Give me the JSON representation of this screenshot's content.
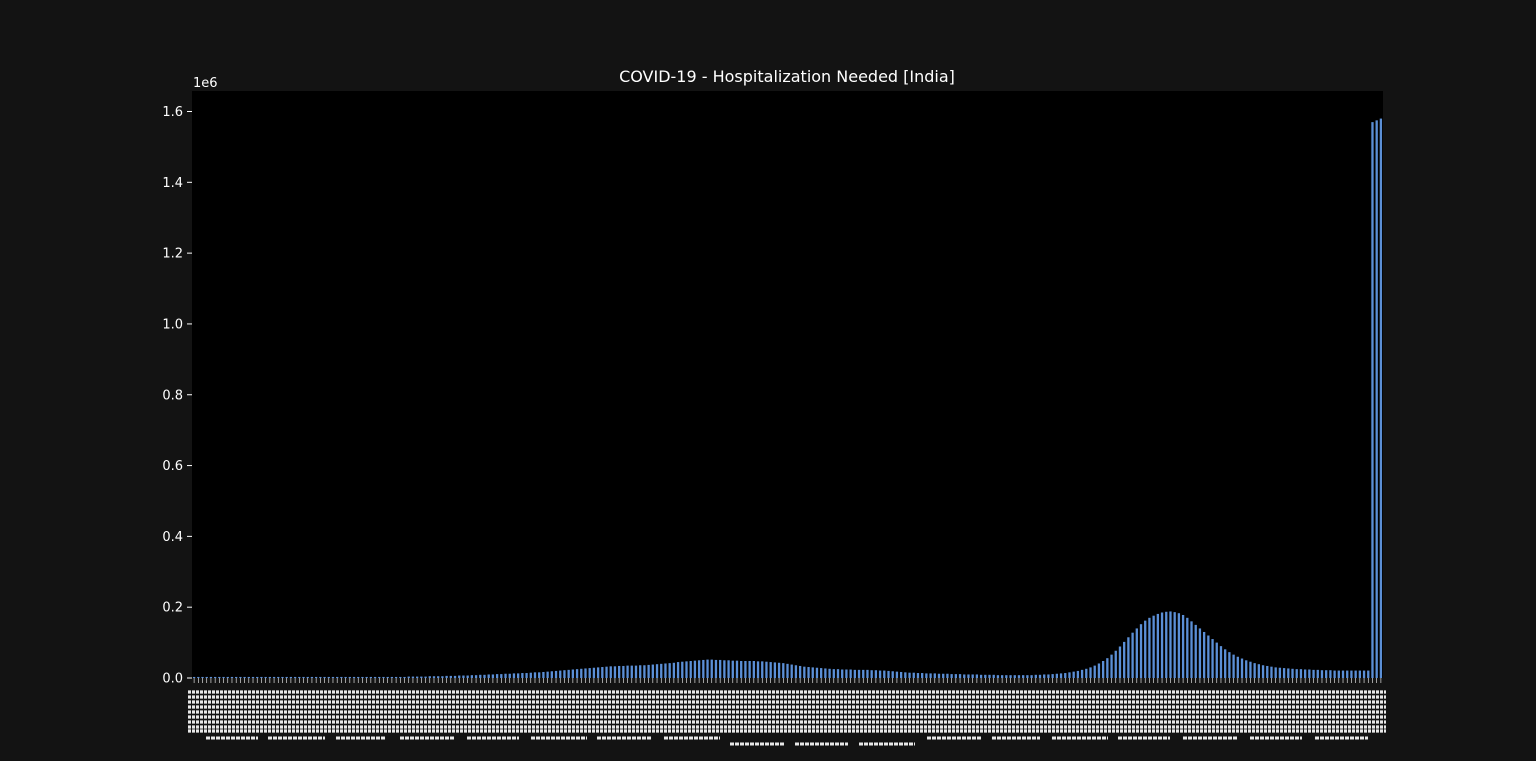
{
  "chart_data": {
    "type": "bar",
    "title": "COVID-19 - Hospitalization Needed [India]",
    "xlabel": "",
    "ylabel": "",
    "y_multiplier_label": "1e6",
    "y_tick_labels": [
      "0.0",
      "0.2",
      "0.4",
      "0.6",
      "0.8",
      "1.0",
      "1.2",
      "1.4",
      "1.6"
    ],
    "ylim": [
      0,
      1.65
    ],
    "grid": false,
    "legend": "none",
    "colors": {
      "background": "#131313",
      "plot_area": "#000000",
      "bar": "#5b8fd6",
      "text": "#ffffff"
    },
    "series": [
      {
        "values": [
          0.003,
          0.003,
          0.003,
          0.003,
          0.003,
          0.003,
          0.003,
          0.003,
          0.003,
          0.003,
          0.003,
          0.003,
          0.003,
          0.003,
          0.003,
          0.003,
          0.003,
          0.003,
          0.003,
          0.003,
          0.003,
          0.003,
          0.003,
          0.003,
          0.003,
          0.003,
          0.003,
          0.003,
          0.003,
          0.003,
          0.003,
          0.003,
          0.003,
          0.003,
          0.003,
          0.003,
          0.003,
          0.003,
          0.003,
          0.003,
          0.003,
          0.003,
          0.003,
          0.003,
          0.003,
          0.003,
          0.003,
          0.003,
          0.003,
          0.003,
          0.003,
          0.004,
          0.004,
          0.004,
          0.004,
          0.004,
          0.005,
          0.005,
          0.005,
          0.005,
          0.006,
          0.006,
          0.006,
          0.007,
          0.007,
          0.007,
          0.008,
          0.008,
          0.009,
          0.009,
          0.01,
          0.01,
          0.011,
          0.011,
          0.012,
          0.012,
          0.013,
          0.013,
          0.014,
          0.014,
          0.015,
          0.016,
          0.016,
          0.017,
          0.018,
          0.019,
          0.02,
          0.021,
          0.022,
          0.023,
          0.024,
          0.025,
          0.026,
          0.027,
          0.028,
          0.029,
          0.03,
          0.031,
          0.032,
          0.033,
          0.033,
          0.034,
          0.034,
          0.035,
          0.035,
          0.035,
          0.036,
          0.036,
          0.037,
          0.038,
          0.039,
          0.04,
          0.041,
          0.042,
          0.043,
          0.045,
          0.046,
          0.047,
          0.048,
          0.049,
          0.05,
          0.051,
          0.052,
          0.052,
          0.051,
          0.051,
          0.05,
          0.05,
          0.049,
          0.049,
          0.048,
          0.048,
          0.048,
          0.048,
          0.047,
          0.047,
          0.046,
          0.045,
          0.044,
          0.043,
          0.042,
          0.04,
          0.038,
          0.036,
          0.034,
          0.032,
          0.031,
          0.03,
          0.029,
          0.028,
          0.027,
          0.026,
          0.025,
          0.025,
          0.024,
          0.024,
          0.024,
          0.023,
          0.023,
          0.023,
          0.023,
          0.022,
          0.022,
          0.021,
          0.021,
          0.02,
          0.019,
          0.018,
          0.017,
          0.016,
          0.015,
          0.015,
          0.014,
          0.014,
          0.013,
          0.013,
          0.013,
          0.012,
          0.012,
          0.012,
          0.011,
          0.011,
          0.011,
          0.01,
          0.01,
          0.01,
          0.01,
          0.009,
          0.009,
          0.009,
          0.009,
          0.008,
          0.008,
          0.008,
          0.008,
          0.008,
          0.008,
          0.008,
          0.008,
          0.008,
          0.009,
          0.009,
          0.01,
          0.01,
          0.011,
          0.012,
          0.013,
          0.014,
          0.016,
          0.018,
          0.02,
          0.023,
          0.026,
          0.03,
          0.035,
          0.041,
          0.048,
          0.056,
          0.066,
          0.077,
          0.089,
          0.102,
          0.115,
          0.128,
          0.14,
          0.152,
          0.162,
          0.17,
          0.176,
          0.181,
          0.185,
          0.187,
          0.188,
          0.186,
          0.183,
          0.178,
          0.17,
          0.16,
          0.15,
          0.14,
          0.13,
          0.12,
          0.11,
          0.1,
          0.09,
          0.081,
          0.073,
          0.066,
          0.06,
          0.055,
          0.05,
          0.046,
          0.042,
          0.039,
          0.036,
          0.034,
          0.032,
          0.03,
          0.029,
          0.028,
          0.027,
          0.026,
          0.025,
          0.025,
          0.024,
          0.024,
          0.023,
          0.023,
          0.022,
          0.022,
          0.022,
          0.021,
          0.021,
          0.021,
          0.021,
          0.021,
          0.021,
          0.021,
          0.021,
          0.021,
          1.57,
          1.575,
          1.58
        ]
      }
    ]
  }
}
